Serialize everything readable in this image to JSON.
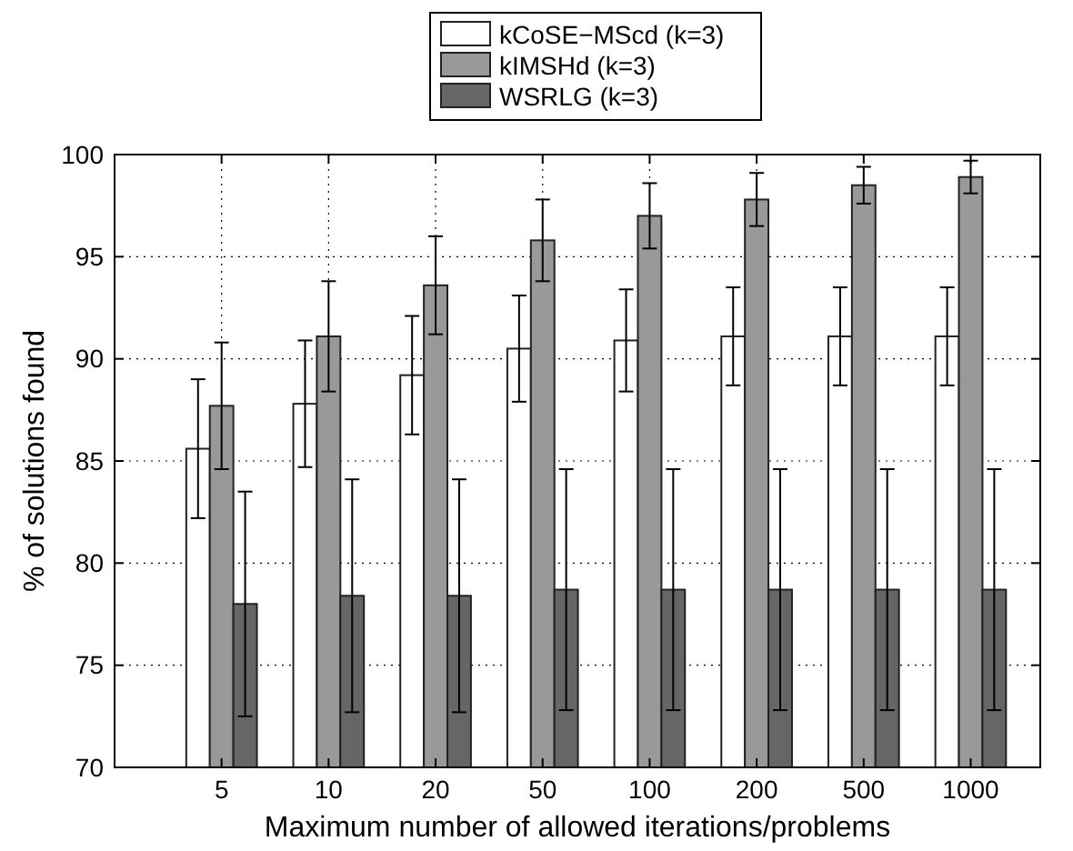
{
  "chart_data": {
    "type": "bar",
    "xlabel": "Maximum number of allowed iterations/problems",
    "ylabel": "% of solutions found",
    "categories": [
      "5",
      "10",
      "20",
      "50",
      "100",
      "200",
      "500",
      "1000"
    ],
    "series": [
      {
        "name": "kCoSE−MScd (k=3)",
        "color": "#ffffff",
        "values": [
          85.6,
          87.8,
          89.2,
          90.5,
          90.9,
          91.1,
          91.1,
          91.1
        ],
        "errors": [
          3.4,
          3.1,
          2.9,
          2.6,
          2.5,
          2.4,
          2.4,
          2.4
        ]
      },
      {
        "name": "kIMSHd (k=3)",
        "color": "#999999",
        "values": [
          87.7,
          91.1,
          93.6,
          95.8,
          97.0,
          97.8,
          98.5,
          98.9
        ],
        "errors": [
          3.1,
          2.7,
          2.4,
          2.0,
          1.6,
          1.3,
          0.9,
          0.8
        ]
      },
      {
        "name": "WSRLG (k=3)",
        "color": "#666666",
        "values": [
          78.0,
          78.4,
          78.4,
          78.7,
          78.7,
          78.7,
          78.7,
          78.7
        ],
        "errors": [
          5.5,
          5.7,
          5.7,
          5.9,
          5.9,
          5.9,
          5.9,
          5.9
        ]
      }
    ],
    "ylim": [
      70,
      100
    ],
    "yticks": [
      70,
      75,
      80,
      85,
      90,
      95,
      100
    ],
    "grid": true,
    "legend": "top"
  }
}
